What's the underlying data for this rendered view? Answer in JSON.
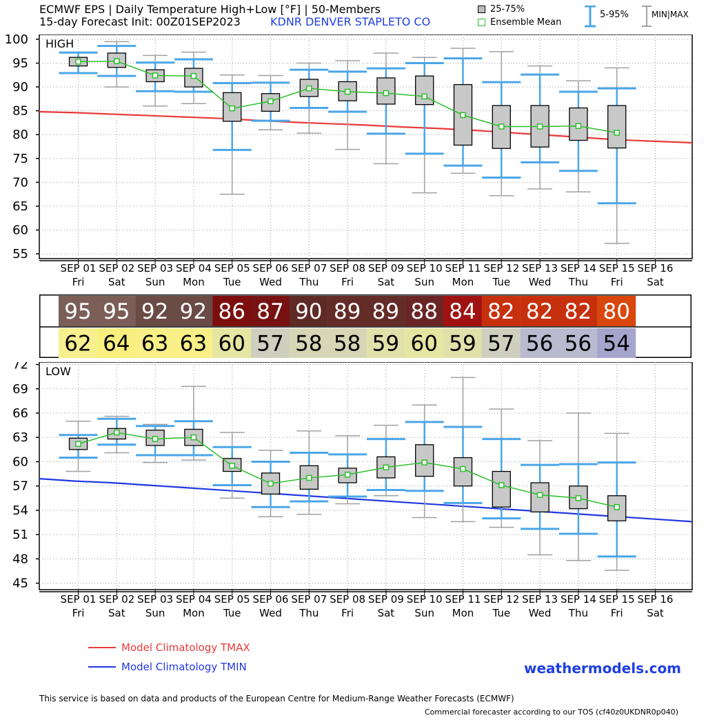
{
  "header": {
    "line1": "ECMWF EPS | Daily Temperature High+Low [°F] | 50-Members",
    "line2": "15-day Forecast Init: 00Z01SEP2023",
    "station": "KDNR  DENVER STAPLETO CO"
  },
  "legend": {
    "iqr": "25-75%",
    "mean": "Ensemble Mean",
    "p595": "5-95%",
    "minmax": "MIN|MAX"
  },
  "days": [
    {
      "date": "SEP 01",
      "dow": "Fri"
    },
    {
      "date": "SEP 02",
      "dow": "Sat"
    },
    {
      "date": "SEP 03",
      "dow": "Sun"
    },
    {
      "date": "SEP 04",
      "dow": "Mon"
    },
    {
      "date": "SEP 05",
      "dow": "Tue"
    },
    {
      "date": "SEP 06",
      "dow": "Wed"
    },
    {
      "date": "SEP 07",
      "dow": "Thu"
    },
    {
      "date": "SEP 08",
      "dow": "Fri"
    },
    {
      "date": "SEP 09",
      "dow": "Sat"
    },
    {
      "date": "SEP 10",
      "dow": "Sun"
    },
    {
      "date": "SEP 11",
      "dow": "Mon"
    },
    {
      "date": "SEP 12",
      "dow": "Tue"
    },
    {
      "date": "SEP 13",
      "dow": "Wed"
    },
    {
      "date": "SEP 14",
      "dow": "Thu"
    },
    {
      "date": "SEP 15",
      "dow": "Fri"
    },
    {
      "date": "SEP 16",
      "dow": "Sat"
    }
  ],
  "table": {
    "high": [
      {
        "v": "95",
        "bg": "#7b5e57"
      },
      {
        "v": "95",
        "bg": "#7b5e57"
      },
      {
        "v": "92",
        "bg": "#6a4b45"
      },
      {
        "v": "92",
        "bg": "#6a4b45"
      },
      {
        "v": "86",
        "bg": "#7d0e0e"
      },
      {
        "v": "87",
        "bg": "#781111"
      },
      {
        "v": "90",
        "bg": "#5e2a25"
      },
      {
        "v": "89",
        "bg": "#642c27"
      },
      {
        "v": "89",
        "bg": "#642c27"
      },
      {
        "v": "88",
        "bg": "#6b2525"
      },
      {
        "v": "84",
        "bg": "#a01212"
      },
      {
        "v": "82",
        "bg": "#c7300d"
      },
      {
        "v": "82",
        "bg": "#c7300d"
      },
      {
        "v": "82",
        "bg": "#c7300d"
      },
      {
        "v": "80",
        "bg": "#d9470c"
      }
    ],
    "low": [
      {
        "v": "62",
        "bg": "#f8ef8f"
      },
      {
        "v": "64",
        "bg": "#f8ef7e"
      },
      {
        "v": "63",
        "bg": "#f8ef87"
      },
      {
        "v": "63",
        "bg": "#f8ef87"
      },
      {
        "v": "60",
        "bg": "#e6e6a3"
      },
      {
        "v": "57",
        "bg": "#cfcfc0"
      },
      {
        "v": "58",
        "bg": "#d6d6b6"
      },
      {
        "v": "58",
        "bg": "#d6d6b6"
      },
      {
        "v": "59",
        "bg": "#e0e0ab"
      },
      {
        "v": "60",
        "bg": "#e6e6a3"
      },
      {
        "v": "59",
        "bg": "#e0e0ab"
      },
      {
        "v": "57",
        "bg": "#cfcfc0"
      },
      {
        "v": "56",
        "bg": "#b9b9cf"
      },
      {
        "v": "56",
        "bg": "#b9b9cf"
      },
      {
        "v": "54",
        "bg": "#a4a4cc"
      }
    ]
  },
  "chart_data": [
    {
      "type": "box",
      "label": "HIGH",
      "ylim": [
        54,
        101
      ],
      "yticks": [
        55,
        60,
        65,
        70,
        75,
        80,
        85,
        90,
        95,
        100
      ],
      "grid": true,
      "series": [
        {
          "name": "25-75%",
          "q1": [
            94.4,
            94.1,
            91.1,
            90.0,
            82.8,
            84.9,
            88.0,
            87.1,
            86.4,
            86.3,
            77.8,
            77.1,
            77.4,
            78.8,
            77.2
          ],
          "q3": [
            96.2,
            97.1,
            93.6,
            93.9,
            88.8,
            88.6,
            91.6,
            91.1,
            91.9,
            92.3,
            90.5,
            86.1,
            86.1,
            85.6,
            86.1
          ]
        },
        {
          "name": "Ensemble Mean",
          "values": [
            95.3,
            95.4,
            92.4,
            92.3,
            85.5,
            87.0,
            89.7,
            89.0,
            88.7,
            88.0,
            84.1,
            81.7,
            81.7,
            81.8,
            80.4
          ]
        },
        {
          "name": "5-95%",
          "p5": [
            92.9,
            92.3,
            89.1,
            89.0,
            76.8,
            82.9,
            85.6,
            84.8,
            80.2,
            76.0,
            73.5,
            71.0,
            74.2,
            72.4,
            65.6
          ],
          "p95": [
            97.2,
            98.6,
            95.1,
            95.8,
            90.8,
            90.9,
            93.6,
            93.2,
            93.9,
            95.0,
            96.0,
            91.0,
            92.6,
            89.0,
            89.7
          ]
        },
        {
          "name": "MIN|MAX",
          "min": [
            92.9,
            90.0,
            86.0,
            86.5,
            67.5,
            81.0,
            80.3,
            76.9,
            73.9,
            67.8,
            71.9,
            67.2,
            68.6,
            68.0,
            57.2
          ],
          "max": [
            97.2,
            99.5,
            96.6,
            97.3,
            92.5,
            92.4,
            95.0,
            95.5,
            97.1,
            96.2,
            98.1,
            97.4,
            94.4,
            91.3,
            94.0
          ]
        },
        {
          "name": "Model Climatology TMAX",
          "values": [
            84.8,
            84.6,
            84.3,
            84.0,
            83.7,
            83.4,
            83.0,
            82.6,
            82.3,
            82.0,
            81.6,
            81.3,
            80.9,
            80.4,
            79.9,
            79.4,
            78.9,
            78.6,
            78.3
          ]
        }
      ]
    },
    {
      "type": "box",
      "label": "LOW",
      "ylim": [
        44.2,
        72.3
      ],
      "yticks": [
        45,
        48,
        51,
        54,
        57,
        60,
        63,
        66,
        69,
        72
      ],
      "grid": true,
      "series": [
        {
          "name": "25-75%",
          "q1": [
            61.5,
            62.8,
            62.0,
            62.0,
            58.8,
            56.0,
            56.6,
            57.4,
            58.0,
            58.2,
            57.0,
            54.4,
            53.8,
            54.2,
            52.7
          ],
          "q3": [
            62.9,
            64.1,
            63.9,
            64.0,
            60.4,
            58.6,
            59.5,
            59.2,
            60.6,
            62.1,
            60.5,
            58.8,
            57.4,
            57.0,
            55.8
          ]
        },
        {
          "name": "Ensemble Mean",
          "values": [
            62.2,
            63.6,
            62.8,
            63.0,
            59.5,
            57.3,
            58.0,
            58.4,
            59.3,
            59.9,
            59.1,
            57.1,
            55.9,
            55.5,
            54.4
          ]
        },
        {
          "name": "5-95%",
          "p5": [
            60.5,
            62.1,
            60.8,
            60.8,
            57.1,
            54.4,
            55.1,
            55.7,
            56.5,
            56.4,
            54.9,
            53.0,
            51.7,
            51.1,
            48.3
          ],
          "p95": [
            63.3,
            65.3,
            64.4,
            65.0,
            61.8,
            60.0,
            61.1,
            60.9,
            62.8,
            64.9,
            64.3,
            62.8,
            59.6,
            59.7,
            59.9
          ]
        },
        {
          "name": "MIN|MAX",
          "min": [
            58.8,
            61.1,
            59.9,
            60.2,
            55.5,
            53.2,
            53.5,
            54.8,
            55.8,
            53.1,
            52.6,
            51.9,
            48.5,
            47.8,
            46.6
          ],
          "max": [
            65.0,
            65.6,
            64.6,
            69.3,
            63.6,
            61.4,
            63.8,
            63.2,
            64.5,
            67.0,
            70.4,
            66.5,
            62.6,
            66.0,
            63.5
          ]
        },
        {
          "name": "Model Climatology TMIN",
          "values": [
            57.9,
            57.6,
            57.4,
            57.1,
            56.8,
            56.5,
            56.2,
            55.9,
            55.6,
            55.3,
            55.0,
            54.7,
            54.4,
            54.1,
            53.8,
            53.5,
            53.2,
            52.9,
            52.6
          ]
        }
      ]
    }
  ],
  "colors": {
    "tmax": "#e83a3a",
    "tmin": "#2238e0",
    "p595": "#4aa6e8",
    "minmax": "#a0a0a0",
    "box": "#c8c8c8",
    "mean": "#2bbf2b"
  },
  "footer": {
    "tmax_label": "Model Climatology TMAX",
    "tmin_label": "Model Climatology TMIN",
    "brand": "weathermodels.com",
    "disclaimer": "This service is based on data and products of the European Centre for Medium-Range Weather Forecasts (ECMWF)",
    "tos": "Commercial forecaster according to our TOS (cf40z0UKDNR0p040)"
  }
}
